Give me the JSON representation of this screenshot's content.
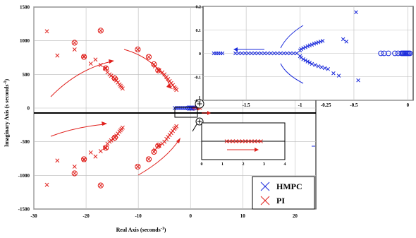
{
  "chart_data": [
    {
      "type": "scatter",
      "xlabel": "Real Axis (seconds",
      "xlabel_sup": "-1",
      "xlabel_tail": ")",
      "ylabel": "Imaginary Axis (s seconds",
      "ylabel_sup": "-1",
      "ylabel_tail": ")",
      "xlim": [
        -30,
        24
      ],
      "ylim": [
        -1500,
        1500
      ],
      "xticks": [
        -30,
        -20,
        -10,
        0,
        10,
        20
      ],
      "yticks": [
        -1500,
        -1000,
        -500,
        0,
        500,
        1000,
        1500
      ],
      "grid": true,
      "legend_position": "bottom-right",
      "legend": [
        {
          "name": "HMPC",
          "color": "#1a2adb",
          "marker": "x"
        },
        {
          "name": "PI",
          "color": "#e0201c",
          "marker": "x"
        }
      ],
      "series": [
        {
          "name": "PI",
          "color": "#e0201c",
          "marker": "x",
          "points": [
            [
              -27.5,
              1140
            ],
            [
              -25.5,
              780
            ],
            [
              -22.2,
              870
            ],
            [
              -20.4,
              770
            ],
            [
              -19.1,
              660
            ],
            [
              -18.2,
              720
            ],
            [
              -17.2,
              640
            ],
            [
              -16.4,
              590
            ],
            [
              -15.9,
              530
            ],
            [
              -15.5,
              500
            ],
            [
              -15.2,
              480
            ],
            [
              -14.8,
              460
            ],
            [
              -14.5,
              430
            ],
            [
              -14.2,
              410
            ],
            [
              -13.9,
              380
            ],
            [
              -13.6,
              350
            ],
            [
              -13.4,
              330
            ],
            [
              -13.2,
              310
            ],
            [
              -13.0,
              290
            ],
            [
              -27.5,
              -1140
            ],
            [
              -25.5,
              -780
            ],
            [
              -22.2,
              -870
            ],
            [
              -20.4,
              -770
            ],
            [
              -19.1,
              -660
            ],
            [
              -18.2,
              -720
            ],
            [
              -17.2,
              -640
            ],
            [
              -16.4,
              -590
            ],
            [
              -15.9,
              -530
            ],
            [
              -15.5,
              -500
            ],
            [
              -15.2,
              -480
            ],
            [
              -14.8,
              -460
            ],
            [
              -14.5,
              -430
            ],
            [
              -14.2,
              -410
            ],
            [
              -13.9,
              -380
            ],
            [
              -13.6,
              -350
            ],
            [
              -13.4,
              -330
            ],
            [
              -13.2,
              -310
            ],
            [
              -13.0,
              -290
            ],
            [
              -6.8,
              620
            ],
            [
              -6.0,
              560
            ],
            [
              -5.4,
              530
            ],
            [
              -5.0,
              500
            ],
            [
              -4.6,
              460
            ],
            [
              -4.3,
              430
            ],
            [
              -4.0,
              400
            ],
            [
              -3.7,
              370
            ],
            [
              -3.4,
              340
            ],
            [
              -3.1,
              310
            ],
            [
              -2.9,
              290
            ],
            [
              -2.7,
              270
            ],
            [
              -6.8,
              -620
            ],
            [
              -6.0,
              -560
            ],
            [
              -5.4,
              -530
            ],
            [
              -5.0,
              -500
            ],
            [
              -4.6,
              -460
            ],
            [
              -4.3,
              -430
            ],
            [
              -4.0,
              -400
            ],
            [
              -3.7,
              -370
            ],
            [
              -3.4,
              -340
            ],
            [
              -3.1,
              -310
            ],
            [
              -2.9,
              -290
            ],
            [
              -2.7,
              -270
            ],
            [
              0.3,
              -10
            ],
            [
              0.6,
              0
            ],
            [
              0.9,
              5
            ],
            [
              1.2,
              -5
            ],
            [
              1.5,
              0
            ],
            [
              1.8,
              5
            ]
          ]
        },
        {
          "name": "PI",
          "color": "#e0201c",
          "marker": "circle-x",
          "points": [
            [
              -22.2,
              970
            ],
            [
              -20.4,
              760
            ],
            [
              -17.2,
              1150
            ],
            [
              -16.2,
              590
            ],
            [
              -14.5,
              440
            ],
            [
              -22.2,
              -970
            ],
            [
              -20.4,
              -760
            ],
            [
              -17.2,
              -1150
            ],
            [
              -16.2,
              -590
            ],
            [
              -14.5,
              -440
            ],
            [
              -10.1,
              870
            ],
            [
              -8.0,
              760
            ],
            [
              -7.0,
              650
            ],
            [
              -6.2,
              560
            ],
            [
              -10.1,
              -870
            ],
            [
              -8.0,
              -760
            ],
            [
              -7.0,
              -650
            ],
            [
              -6.2,
              -560
            ]
          ]
        },
        {
          "name": "HMPC",
          "color": "#1a2adb",
          "marker": "x",
          "points": [
            [
              -3.0,
              0
            ],
            [
              -2.6,
              0
            ],
            [
              -2.2,
              0
            ],
            [
              -1.8,
              0
            ],
            [
              -1.4,
              0
            ],
            [
              -1.0,
              0
            ],
            [
              -0.6,
              0
            ],
            [
              -0.2,
              0
            ],
            [
              0.2,
              0
            ]
          ]
        },
        {
          "name": "HMPC",
          "color": "#1a2adb",
          "marker": "circle",
          "points": [
            [
              -0.5,
              0
            ],
            [
              -0.1,
              0
            ],
            [
              0.3,
              0
            ],
            [
              0.7,
              0
            ]
          ]
        }
      ]
    },
    {
      "type": "scatter",
      "title": "",
      "xlim": [
        -1.9,
        0.05
      ],
      "ylim": [
        -0.2,
        0.2
      ],
      "xticks": [
        -1.5,
        -1,
        -0.5,
        0
      ],
      "xtick_labels": [
        "-1.5",
        "-1",
        "-0.5",
        "0"
      ],
      "extra_xtick_label": "-0.25",
      "yticks": [
        -0.2,
        -0.1,
        0,
        0.1,
        0.2
      ],
      "grid": true,
      "series": [
        {
          "name": "HMPC",
          "color": "#1a2adb",
          "marker": "x",
          "points": [
            [
              -1.8,
              0
            ],
            [
              -1.78,
              0
            ],
            [
              -1.76,
              0
            ],
            [
              -1.74,
              0
            ],
            [
              -1.72,
              0
            ],
            [
              -1.6,
              0
            ],
            [
              -1.57,
              0
            ],
            [
              -1.54,
              0
            ],
            [
              -1.51,
              0
            ],
            [
              -1.48,
              0
            ],
            [
              -1.45,
              0
            ],
            [
              -1.42,
              0
            ],
            [
              -1.39,
              0
            ],
            [
              -1.36,
              0
            ],
            [
              -1.33,
              0
            ],
            [
              -1.3,
              0
            ],
            [
              -1.27,
              0
            ],
            [
              -1.24,
              0
            ],
            [
              -1.21,
              0
            ],
            [
              -1.18,
              0
            ],
            [
              -1.15,
              0
            ],
            [
              -1.12,
              0
            ],
            [
              -1.09,
              0
            ],
            [
              -1.06,
              0
            ],
            [
              -1.03,
              0
            ],
            [
              -1.0,
              0.012
            ],
            [
              -0.99,
              0.018
            ],
            [
              -0.97,
              0.022
            ],
            [
              -0.95,
              0.026
            ],
            [
              -0.93,
              0.03
            ],
            [
              -0.91,
              0.034
            ],
            [
              -0.89,
              0.037
            ],
            [
              -0.87,
              0.041
            ],
            [
              -0.85,
              0.044
            ],
            [
              -0.83,
              0.047
            ],
            [
              -0.81,
              0.05
            ],
            [
              -0.79,
              0.053
            ],
            [
              -1.0,
              -0.012
            ],
            [
              -0.99,
              -0.018
            ],
            [
              -0.97,
              -0.025
            ],
            [
              -0.95,
              -0.03
            ],
            [
              -0.93,
              -0.035
            ],
            [
              -0.91,
              -0.04
            ],
            [
              -0.89,
              -0.045
            ],
            [
              -0.86,
              -0.05
            ],
            [
              -0.83,
              -0.055
            ],
            [
              -0.8,
              -0.059
            ],
            [
              -0.77,
              -0.063
            ],
            [
              -0.74,
              -0.067
            ],
            [
              -0.6,
              0.06
            ],
            [
              -0.57,
              0.05
            ],
            [
              -0.48,
              0.175
            ],
            [
              -0.46,
              -0.115
            ],
            [
              -0.69,
              -0.085
            ],
            [
              -0.64,
              -0.095
            ]
          ]
        },
        {
          "name": "HMPC",
          "color": "#1a2adb",
          "marker": "circle",
          "points": [
            [
              -0.25,
              0
            ],
            [
              -0.22,
              0
            ],
            [
              -0.18,
              0
            ],
            [
              -0.12,
              0
            ],
            [
              -0.09,
              0
            ],
            [
              -0.06,
              0
            ],
            [
              -0.05,
              0
            ],
            [
              -0.04,
              0
            ],
            [
              -0.03,
              0
            ],
            [
              -0.02,
              0
            ],
            [
              -0.01,
              0
            ],
            [
              0.0,
              0
            ],
            [
              0.01,
              0
            ],
            [
              0.02,
              0
            ]
          ]
        }
      ]
    },
    {
      "type": "scatter",
      "xlim": [
        0,
        4
      ],
      "xticks": [
        0,
        1,
        2,
        3,
        4
      ],
      "series": [
        {
          "name": "PI",
          "color": "#e0201c",
          "marker": "x",
          "points": [
            [
              1.2,
              0
            ],
            [
              1.35,
              0
            ],
            [
              1.5,
              0
            ],
            [
              1.65,
              0
            ],
            [
              1.8,
              0
            ],
            [
              1.95,
              0
            ],
            [
              2.1,
              0
            ],
            [
              2.25,
              0
            ],
            [
              2.4,
              0
            ],
            [
              2.55,
              0
            ],
            [
              2.7,
              0
            ],
            [
              2.85,
              0
            ]
          ]
        }
      ]
    }
  ]
}
